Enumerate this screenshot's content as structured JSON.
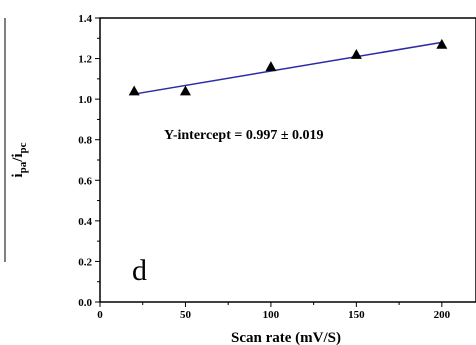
{
  "chart_data": {
    "type": "scatter",
    "x": [
      20,
      50,
      100,
      150,
      200
    ],
    "y": [
      1.04,
      1.04,
      1.16,
      1.22,
      1.27
    ],
    "fit_line": {
      "x": [
        20,
        200
      ],
      "y": [
        1.025,
        1.28
      ],
      "color": "#2a2aa8"
    },
    "marker": "triangle",
    "marker_color": "#000000",
    "xlabel": "Scan rate (mV/S)",
    "ylabel_main": "i",
    "ylabel_sub_top": "pa",
    "ylabel_sub_bottom": "pc",
    "xlim": [
      0,
      220
    ],
    "ylim": [
      0.0,
      1.4
    ],
    "x_ticks": [
      0,
      50,
      100,
      150,
      200
    ],
    "y_ticks": [
      0.0,
      0.2,
      0.4,
      0.6,
      0.8,
      1.0,
      1.2,
      1.4
    ],
    "annotation": "Y-intercept = 0.997 ± 0.019",
    "panel_label": "d",
    "grid": false
  }
}
